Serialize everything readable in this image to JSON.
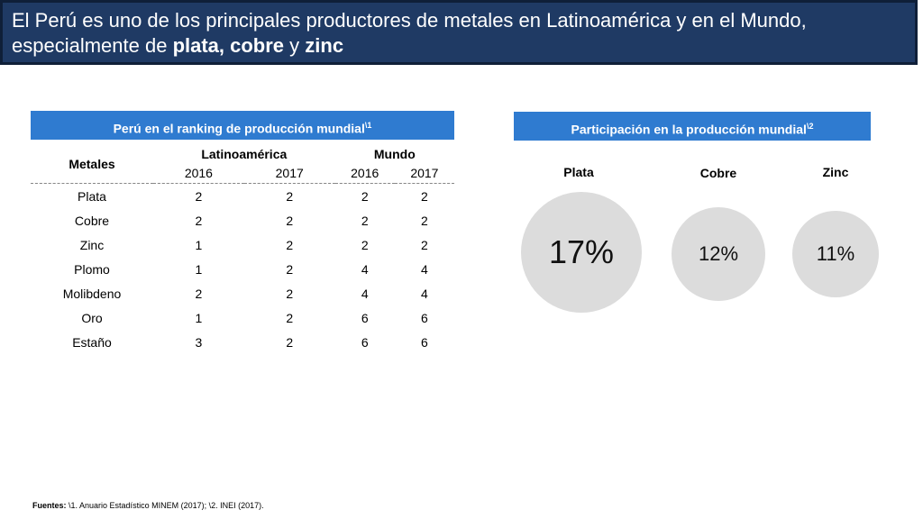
{
  "title": {
    "prefix": "El Perú es uno de los principales productores de metales en Latinoamérica y en el Mundo, especialmente de ",
    "highlight1": "plata, cobre",
    "connector": " y ",
    "highlight2": "zinc"
  },
  "ranking": {
    "header": "Perú en el ranking de producción mundial",
    "header_note": "\\1",
    "metal_col": "Metales",
    "groups": [
      "Latinoamérica",
      "Mundo"
    ],
    "years": [
      "2016",
      "2017",
      "2016",
      "2017"
    ],
    "rows": [
      {
        "metal": "Plata",
        "values": [
          2,
          2,
          2,
          2
        ]
      },
      {
        "metal": "Cobre",
        "values": [
          2,
          2,
          2,
          2
        ]
      },
      {
        "metal": "Zinc",
        "values": [
          1,
          2,
          2,
          2
        ]
      },
      {
        "metal": "Plomo",
        "values": [
          1,
          2,
          4,
          4
        ]
      },
      {
        "metal": "Molibdeno",
        "values": [
          2,
          2,
          4,
          4
        ]
      },
      {
        "metal": "Oro",
        "values": [
          1,
          2,
          6,
          6
        ]
      },
      {
        "metal": "Estaño",
        "values": [
          3,
          2,
          6,
          6
        ]
      }
    ]
  },
  "share": {
    "header": "Participación en la producción mundial",
    "header_note": "\\2",
    "items": [
      {
        "metal": "Plata",
        "value": "17%"
      },
      {
        "metal": "Cobre",
        "value": "12%"
      },
      {
        "metal": "Zinc",
        "value": "11%"
      }
    ]
  },
  "footer": {
    "label": "Fuentes:",
    "text": " \\1. Anuario Estadístico MINEM (2017); \\2. INEI (2017)."
  },
  "colors": {
    "title_bg": "#1f3a64",
    "header_bg": "#2f7bd0",
    "bubble": "#dcdcdc"
  }
}
